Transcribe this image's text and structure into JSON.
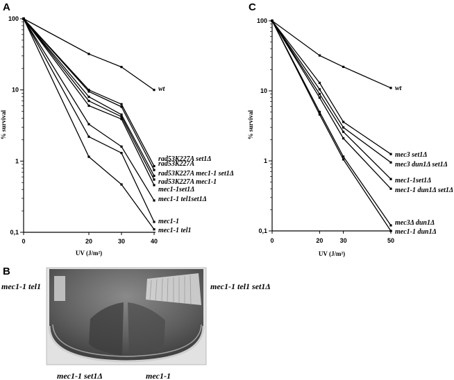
{
  "chart_data": [
    {
      "panel": "A",
      "type": "line",
      "y_scale": "log",
      "ylim": [
        0.1,
        100
      ],
      "xlim": [
        0,
        40
      ],
      "x": [
        0,
        20,
        30,
        40
      ],
      "x_ticks": [
        "0",
        "20",
        "30",
        "40"
      ],
      "y_ticks": [
        "100",
        "10",
        "1",
        "0,1"
      ],
      "xlabel": "UV (J/m²)",
      "ylabel": "% survival",
      "series": [
        {
          "name": "wt",
          "values": [
            100,
            32,
            21,
            10
          ]
        },
        {
          "name": "rad53K227A set1Δ",
          "values": [
            100,
            10,
            6.3,
            0.85
          ]
        },
        {
          "name": "rad53K227A",
          "values": [
            100,
            9.5,
            5.8,
            0.75
          ]
        },
        {
          "name": "rad53K227A mec1-1 set1Δ",
          "values": [
            100,
            8.0,
            4.5,
            0.62
          ]
        },
        {
          "name": "rad53K227A mec1-1",
          "values": [
            100,
            7.0,
            4.2,
            0.55
          ]
        },
        {
          "name": "mec1-1set1Δ",
          "values": [
            100,
            6.0,
            3.9,
            0.46
          ]
        },
        {
          "name": "mec1-1 tel1set1Δ",
          "values": [
            100,
            3.3,
            1.6,
            0.28
          ]
        },
        {
          "name": "mec1-1",
          "values": [
            100,
            2.2,
            1.3,
            0.14
          ]
        },
        {
          "name": "mec1-1 tel1",
          "values": [
            100,
            1.15,
            0.47,
            0.11
          ]
        }
      ]
    },
    {
      "panel": "C",
      "type": "line",
      "y_scale": "log",
      "ylim": [
        0.1,
        100
      ],
      "xlim": [
        0,
        50
      ],
      "x": [
        0,
        20,
        30,
        50
      ],
      "x_ticks": [
        "0",
        "20",
        "30",
        "50"
      ],
      "y_ticks": [
        "100",
        "10",
        "1",
        "0,1"
      ],
      "xlabel": "UV (J/m²)",
      "ylabel": "% survival",
      "series": [
        {
          "name": "wt",
          "values": [
            100,
            32,
            22,
            11
          ]
        },
        {
          "name": "mec3 set1Δ",
          "values": [
            100,
            13,
            3.6,
            1.25
          ]
        },
        {
          "name": "mec3 dun1Δ set1Δ",
          "values": [
            100,
            10.5,
            3.0,
            0.95
          ]
        },
        {
          "name": "mec1-1set1Δ",
          "values": [
            100,
            9.0,
            2.6,
            0.55
          ]
        },
        {
          "name": "mec1-1 dun1Δ set1Δ",
          "values": [
            100,
            8.0,
            2.1,
            0.4
          ]
        },
        {
          "name": "mec3Δ dun1Δ",
          "values": [
            100,
            5.0,
            1.15,
            0.12
          ]
        },
        {
          "name": "mec1-1 dun1Δ",
          "values": [
            100,
            4.6,
            1.05,
            0.1
          ]
        }
      ]
    }
  ],
  "panel_b": {
    "letter": "B",
    "labels": {
      "top_left": "mec1-1 tel1",
      "top_right": "mec1-1 tel1 set1Δ",
      "bottom_left": "mec1-1 set1Δ",
      "bottom_right": "mec1-1"
    }
  },
  "letters": {
    "a": "A",
    "c": "C"
  }
}
